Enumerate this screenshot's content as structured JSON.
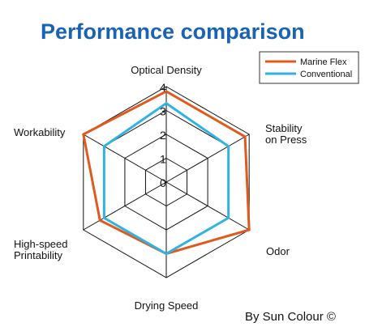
{
  "chart_data": {
    "type": "radar",
    "title": "Performance comparison",
    "axes": [
      [
        "Optical Density"
      ],
      [
        "Stability",
        "on Press"
      ],
      [
        "Odor"
      ],
      [
        "Drying Speed"
      ],
      [
        "High-speed",
        "Printability"
      ],
      [
        "Workability"
      ]
    ],
    "ticks": [
      "0",
      "1",
      "2",
      "3",
      "4"
    ],
    "rlim": [
      0,
      4
    ],
    "grid": true,
    "legend_position": "top-right",
    "series": [
      {
        "name": "Marine Flex",
        "color": "#e05a1e",
        "values": [
          3.8,
          3.8,
          4.0,
          3.0,
          3.2,
          4.0
        ]
      },
      {
        "name": "Conventional",
        "color": "#2fb3e3",
        "values": [
          3.3,
          3.0,
          3.0,
          3.0,
          3.0,
          3.0
        ]
      }
    ]
  },
  "footer": {
    "credit": "By Sun Colour ©"
  }
}
